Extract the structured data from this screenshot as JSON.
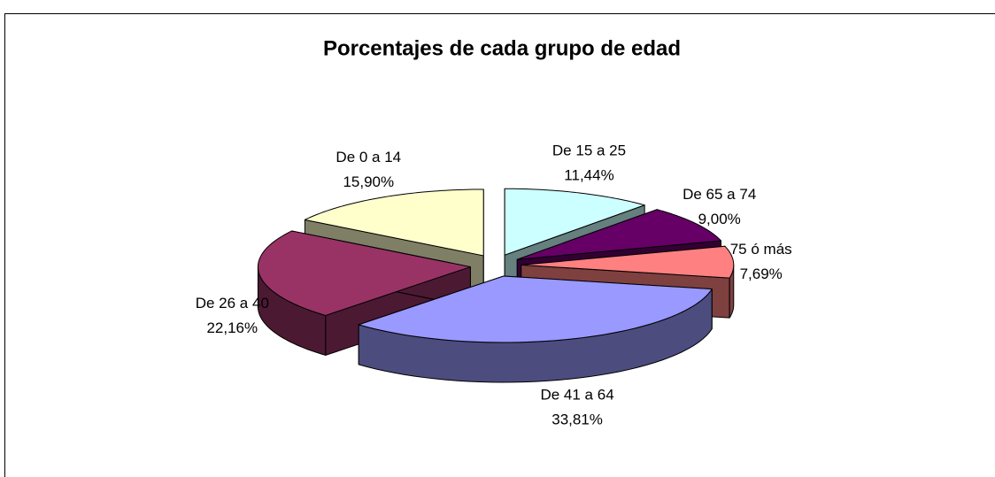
{
  "chart_data": {
    "type": "pie",
    "title": "Porcentajes de cada grupo de edad",
    "categories": [
      "De 15 a 25",
      "De 65 a 74",
      "75 ó más",
      "De 41 a 64",
      "De 26 a 40",
      "De 0 a 14"
    ],
    "values": [
      11.44,
      9.0,
      7.69,
      33.81,
      22.16,
      15.9
    ],
    "value_labels": [
      "11,44%",
      "9,00%",
      "7,69%",
      "33,81%",
      "22,16%",
      "15,90%"
    ],
    "colors": [
      "#ccffff",
      "#660066",
      "#ff8080",
      "#9999ff",
      "#993366",
      "#ffffcc"
    ]
  }
}
